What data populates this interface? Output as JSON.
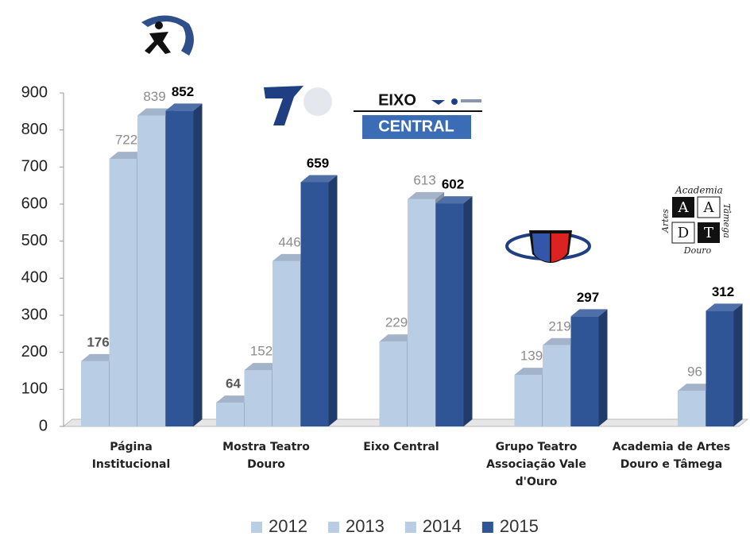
{
  "chart_data": {
    "type": "bar3d",
    "categories": [
      "Página Institucional",
      "Mostra Teatro Douro",
      "Eixo Central",
      "Grupo Teatro Associação Vale d'Ouro",
      "Academia de Artes Douro e Tâmega"
    ],
    "series": [
      {
        "name": "2012",
        "color": "#b9cde5",
        "label_color": "#595959",
        "label_bold": true,
        "values": [
          176,
          64,
          null,
          null,
          null
        ]
      },
      {
        "name": "2013",
        "color": "#b9cde5",
        "label_color": "#8c8c8c",
        "label_bold": false,
        "values": [
          722,
          152,
          229,
          139,
          null
        ]
      },
      {
        "name": "2014",
        "color": "#b9cde5",
        "label_color": "#8c8c8c",
        "label_bold": false,
        "values": [
          839,
          446,
          613,
          219,
          96
        ]
      },
      {
        "name": "2015",
        "color": "#2f5597",
        "label_color": "#000000",
        "label_bold": true,
        "values": [
          852,
          659,
          602,
          297,
          312
        ]
      }
    ],
    "ylim": [
      0,
      900
    ],
    "yticks": [
      0,
      100,
      200,
      300,
      400,
      500,
      600,
      700,
      800,
      900
    ],
    "grid": false,
    "legend": "bottom"
  },
  "logos": {
    "eixo": [
      "EIXO",
      "CENTRAL"
    ],
    "academia": [
      "Academia",
      "A",
      "A",
      "D",
      "T",
      "Artes",
      "Tâmega",
      "Douro"
    ]
  }
}
